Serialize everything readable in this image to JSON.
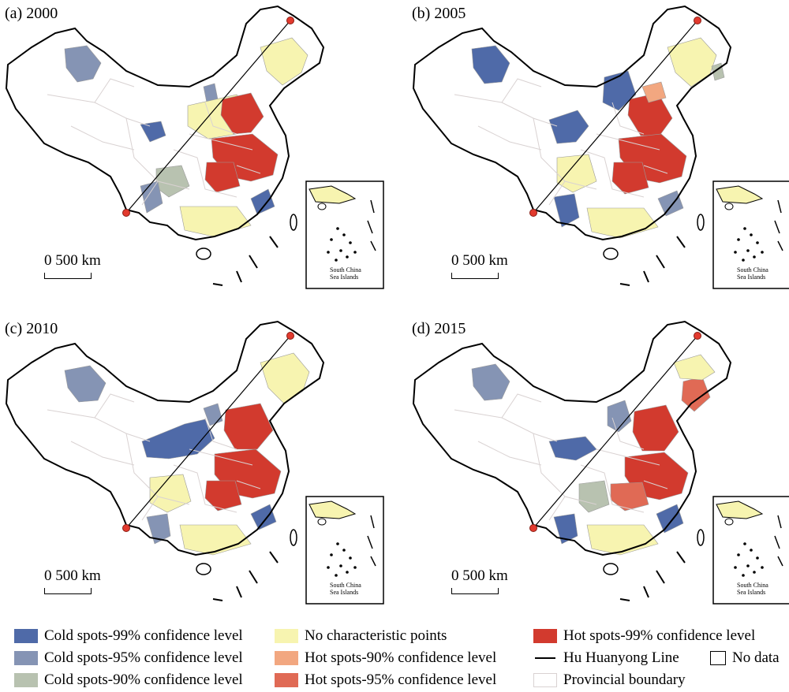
{
  "panels": [
    {
      "label": "(a) 2000"
    },
    {
      "label": "(b) 2005"
    },
    {
      "label": "(c) 2010"
    },
    {
      "label": "(d) 2015"
    }
  ],
  "scale_label": "0  500 km",
  "inset_label_line1": "South China",
  "inset_label_line2": "Sea Islands",
  "legend": {
    "cold99": "Cold spots-99% confidence level",
    "cold95": "Cold spots-95% confidence level",
    "cold90": "Cold spots-90% confidence level",
    "none": "No characteristic points",
    "hot90": "Hot spots-90% confidence level",
    "hot95": "Hot spots-95% confidence level",
    "hot99": "Hot spots-99% confidence level",
    "huline": "Hu Huanyong Line",
    "nodata": "No data",
    "provincial": "Provincial boundary"
  },
  "colors": {
    "cold99": "#4f6aa8",
    "cold95": "#8594b4",
    "cold90": "#b8c2b0",
    "none": "#f7f4b0",
    "hot90": "#f2a780",
    "hot95": "#e06a55",
    "hot99": "#d23a2e",
    "boundary": "#d9d2d2"
  }
}
